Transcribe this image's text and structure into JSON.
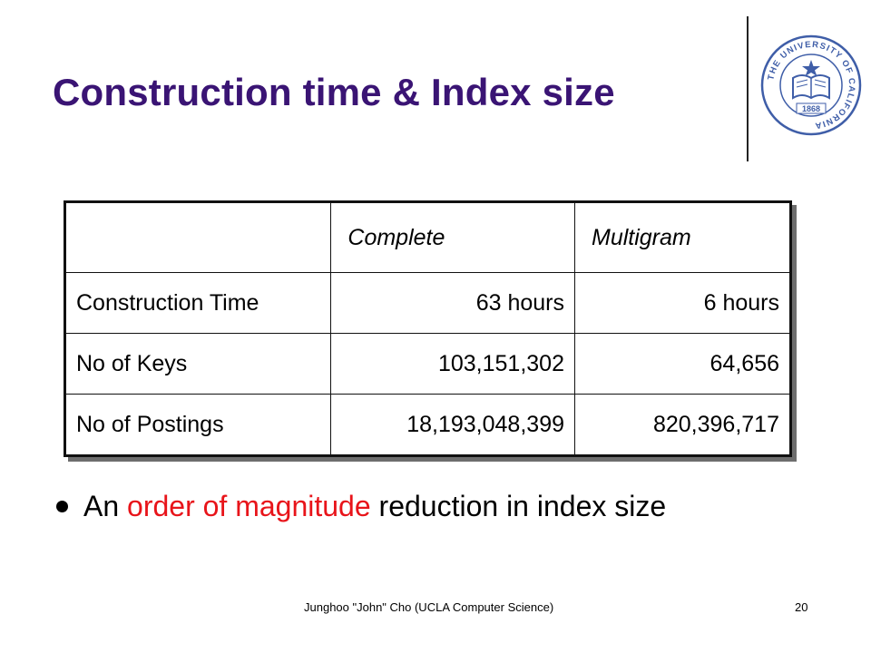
{
  "slide": {
    "title": "Construction time & Index size"
  },
  "table": {
    "headers": [
      "",
      "Complete",
      "Multigram"
    ],
    "rows": [
      [
        "Construction Time",
        "63 hours",
        "6 hours"
      ],
      [
        "No of Keys",
        "103,151,302",
        "64,656"
      ],
      [
        "No of Postings",
        "18,193,048,399",
        "820,396,717"
      ]
    ]
  },
  "bullet": {
    "before": "An ",
    "highlight": "order of magnitude",
    "after": " reduction in index size",
    "highlight_color": "#e8141a"
  },
  "footer": {
    "credit": "Junghoo \"John\" Cho (UCLA Computer Science)",
    "page_number": "20"
  },
  "logo": {
    "icon": "university-of-california-seal-icon",
    "ring_text": "THE UNIVERSITY OF CALIFORNIA",
    "year": "1868",
    "color": "#3f5ea8"
  },
  "colors": {
    "title": "#3a1474",
    "text": "#000000",
    "background": "#ffffff"
  }
}
